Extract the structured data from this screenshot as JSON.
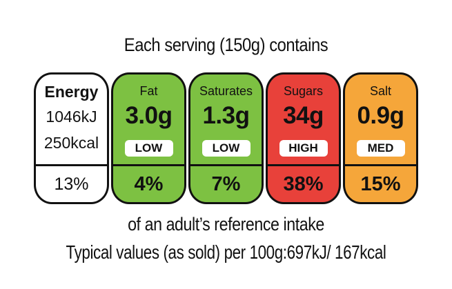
{
  "header": {
    "serving_text": "Each serving (150g) contains"
  },
  "energy": {
    "title": "Energy",
    "kj": "1046kJ",
    "kcal": "250kcal",
    "percent": "13%"
  },
  "nutrients": [
    {
      "name": "Fat",
      "amount": "3.0g",
      "level": "LOW",
      "percent": "4%",
      "color": "#7dc142"
    },
    {
      "name": "Saturates",
      "amount": "1.3g",
      "level": "LOW",
      "percent": "7%",
      "color": "#7dc142"
    },
    {
      "name": "Sugars",
      "amount": "34g",
      "level": "HIGH",
      "percent": "38%",
      "color": "#e8413a"
    },
    {
      "name": "Salt",
      "amount": "0.9g",
      "level": "MED",
      "percent": "15%",
      "color": "#f5a63a"
    }
  ],
  "footer": {
    "reference_text": "of an adult’s reference intake",
    "typical_values": "Typical values (as sold) per 100g:697kJ/ 167kcal"
  }
}
